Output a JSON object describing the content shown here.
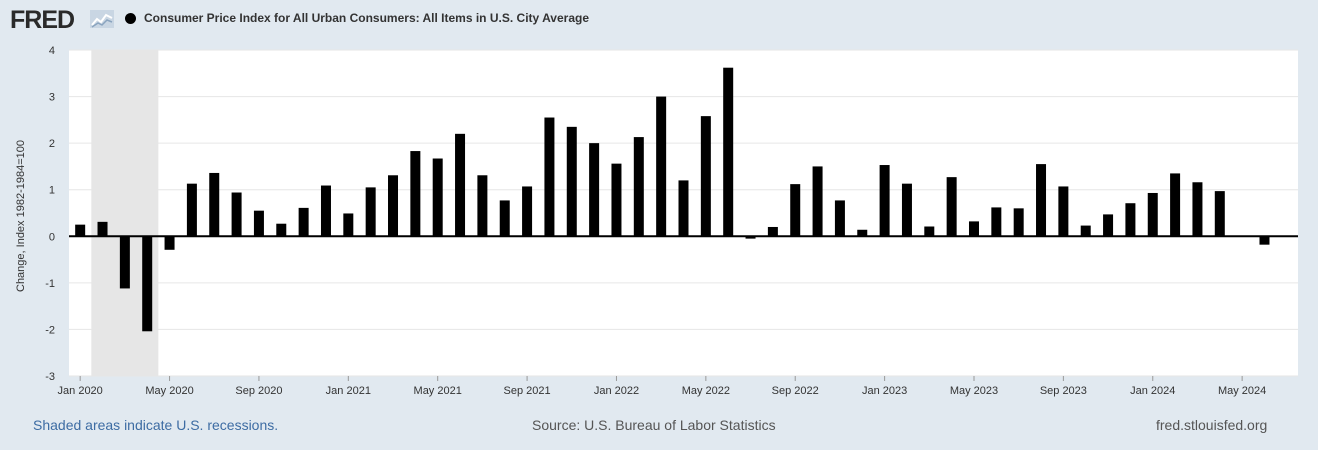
{
  "header": {
    "logo_text": "FRED",
    "series_label": "Consumer Price Index for All Urban Consumers: All Items in U.S. City Average"
  },
  "footer": {
    "recession_note": "Shaded areas indicate U.S. recessions.",
    "source": "Source: U.S. Bureau of Labor Statistics",
    "site": "fred.stlouisfed.org"
  },
  "colors": {
    "background": "#e1e9f0",
    "plot_background": "#ffffff",
    "bar": "#000000",
    "recession_shade": "#e6e6e6",
    "grid": "#e6e6e6",
    "link": "#3d6ca3"
  },
  "chart_data": {
    "type": "bar",
    "title": "",
    "ylabel": "Change, Index 1982-1984=100",
    "xlabel": "",
    "ylim": [
      -3,
      4
    ],
    "yticks": [
      -3,
      -2,
      -1,
      0,
      1,
      2,
      3,
      4
    ],
    "grid": true,
    "legend_position": "top-left",
    "x_start": "2020-01",
    "x_end": "2024-07",
    "xtick_labels": [
      {
        "date": "2020-01",
        "label": "Jan 2020"
      },
      {
        "date": "2020-05",
        "label": "May 2020"
      },
      {
        "date": "2020-09",
        "label": "Sep 2020"
      },
      {
        "date": "2021-01",
        "label": "Jan 2021"
      },
      {
        "date": "2021-05",
        "label": "May 2021"
      },
      {
        "date": "2021-09",
        "label": "Sep 2021"
      },
      {
        "date": "2022-01",
        "label": "Jan 2022"
      },
      {
        "date": "2022-05",
        "label": "May 2022"
      },
      {
        "date": "2022-09",
        "label": "Sep 2022"
      },
      {
        "date": "2023-01",
        "label": "Jan 2023"
      },
      {
        "date": "2023-05",
        "label": "May 2023"
      },
      {
        "date": "2023-09",
        "label": "Sep 2023"
      },
      {
        "date": "2024-01",
        "label": "Jan 2024"
      },
      {
        "date": "2024-05",
        "label": "May 2024"
      }
    ],
    "recessions": [
      {
        "start": "2020-02",
        "end": "2020-04"
      }
    ],
    "series": [
      {
        "name": "Consumer Price Index for All Urban Consumers: All Items in U.S. City Average",
        "x": [
          "2020-01",
          "2020-02",
          "2020-03",
          "2020-04",
          "2020-05",
          "2020-06",
          "2020-07",
          "2020-08",
          "2020-09",
          "2020-10",
          "2020-11",
          "2020-12",
          "2021-01",
          "2021-02",
          "2021-03",
          "2021-04",
          "2021-05",
          "2021-06",
          "2021-07",
          "2021-08",
          "2021-09",
          "2021-10",
          "2021-11",
          "2021-12",
          "2022-01",
          "2022-02",
          "2022-03",
          "2022-04",
          "2022-05",
          "2022-06",
          "2022-07",
          "2022-08",
          "2022-09",
          "2022-10",
          "2022-11",
          "2022-12",
          "2023-01",
          "2023-02",
          "2023-03",
          "2023-04",
          "2023-05",
          "2023-06",
          "2023-07",
          "2023-08",
          "2023-09",
          "2023-10",
          "2023-11",
          "2023-12",
          "2024-01",
          "2024-02",
          "2024-03",
          "2024-04",
          "2024-05",
          "2024-06"
        ],
        "values": [
          0.25,
          0.31,
          -1.12,
          -2.04,
          -0.29,
          1.13,
          1.36,
          0.94,
          0.55,
          0.27,
          0.61,
          1.09,
          0.49,
          1.05,
          1.31,
          1.83,
          1.67,
          2.2,
          1.31,
          0.77,
          1.07,
          2.55,
          2.35,
          2.0,
          1.56,
          2.13,
          3.0,
          1.2,
          2.58,
          3.62,
          -0.05,
          0.2,
          1.12,
          1.5,
          0.77,
          0.14,
          1.53,
          1.13,
          0.21,
          1.27,
          0.32,
          0.62,
          0.6,
          1.55,
          1.07,
          0.23,
          0.47,
          0.71,
          0.93,
          1.35,
          1.16,
          0.97,
          0.0,
          -0.18
        ]
      }
    ]
  }
}
